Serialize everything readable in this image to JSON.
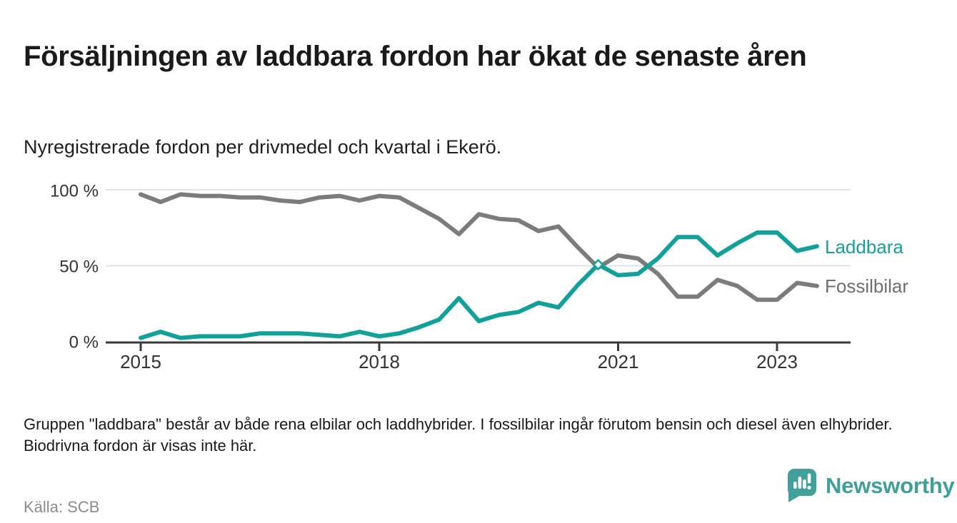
{
  "header": {
    "title": "Försäljningen av laddbara fordon har ökat de senaste åren",
    "subtitle": "Nyregistrerade fordon per drivmedel och kvartal i Ekerö."
  },
  "chart_data": {
    "type": "line",
    "unit": "%",
    "ylim": [
      0,
      100
    ],
    "grid": "horizontal",
    "legend_position": "right-of-line-ends",
    "y_tick_labels": [
      "100 %",
      "50 %",
      "0 %"
    ],
    "x_tick_labels": [
      "2015",
      "2018",
      "2021",
      "2023"
    ],
    "x_quarters": [
      "2015 Q1",
      "2015 Q2",
      "2015 Q3",
      "2015 Q4",
      "2016 Q1",
      "2016 Q2",
      "2016 Q3",
      "2016 Q4",
      "2017 Q1",
      "2017 Q2",
      "2017 Q3",
      "2017 Q4",
      "2018 Q1",
      "2018 Q2",
      "2018 Q3",
      "2018 Q4",
      "2019 Q1",
      "2019 Q2",
      "2019 Q3",
      "2019 Q4",
      "2020 Q1",
      "2020 Q2",
      "2020 Q3",
      "2020 Q4",
      "2021 Q1",
      "2021 Q2",
      "2021 Q3",
      "2021 Q4",
      "2022 Q1",
      "2022 Q2",
      "2022 Q3",
      "2022 Q4",
      "2023 Q1",
      "2023 Q2",
      "2023 Q3"
    ],
    "series": [
      {
        "name": "Laddbara",
        "color": "#12a19a",
        "label_color": "#12a19a",
        "values": [
          3,
          7,
          3,
          4,
          4,
          4,
          6,
          6,
          6,
          5,
          4,
          7,
          4,
          6,
          10,
          15,
          29,
          14,
          18,
          20,
          26,
          23,
          38,
          51,
          44,
          45,
          55,
          69,
          69,
          57,
          65,
          72,
          72,
          60,
          63
        ]
      },
      {
        "name": "Fossilbilar",
        "color": "#7c7c7c",
        "label_color": "#6f6f6f",
        "values": [
          97,
          92,
          97,
          96,
          96,
          95,
          95,
          93,
          92,
          95,
          96,
          93,
          96,
          95,
          88,
          81,
          71,
          84,
          81,
          80,
          73,
          76,
          62,
          49,
          57,
          55,
          45,
          30,
          30,
          41,
          37,
          28,
          28,
          39,
          37
        ]
      }
    ],
    "crossover_marker": {
      "quarter": "2020 Q4",
      "series": "Laddbara",
      "value": 51
    },
    "axis_color": "#3a3a3a",
    "gridline_color": "#dcdcdc",
    "tick_label_color": "#333333"
  },
  "footer": {
    "note": "Gruppen \"laddbara\" består av både rena elbilar och laddhybrider. I fossilbilar ingår förutom bensin och diesel även elhybrider. Biodrivna fordon är visas inte här.",
    "source": "Källa: SCB",
    "brand": "Newsworthy",
    "brand_color": "#41a09c"
  }
}
